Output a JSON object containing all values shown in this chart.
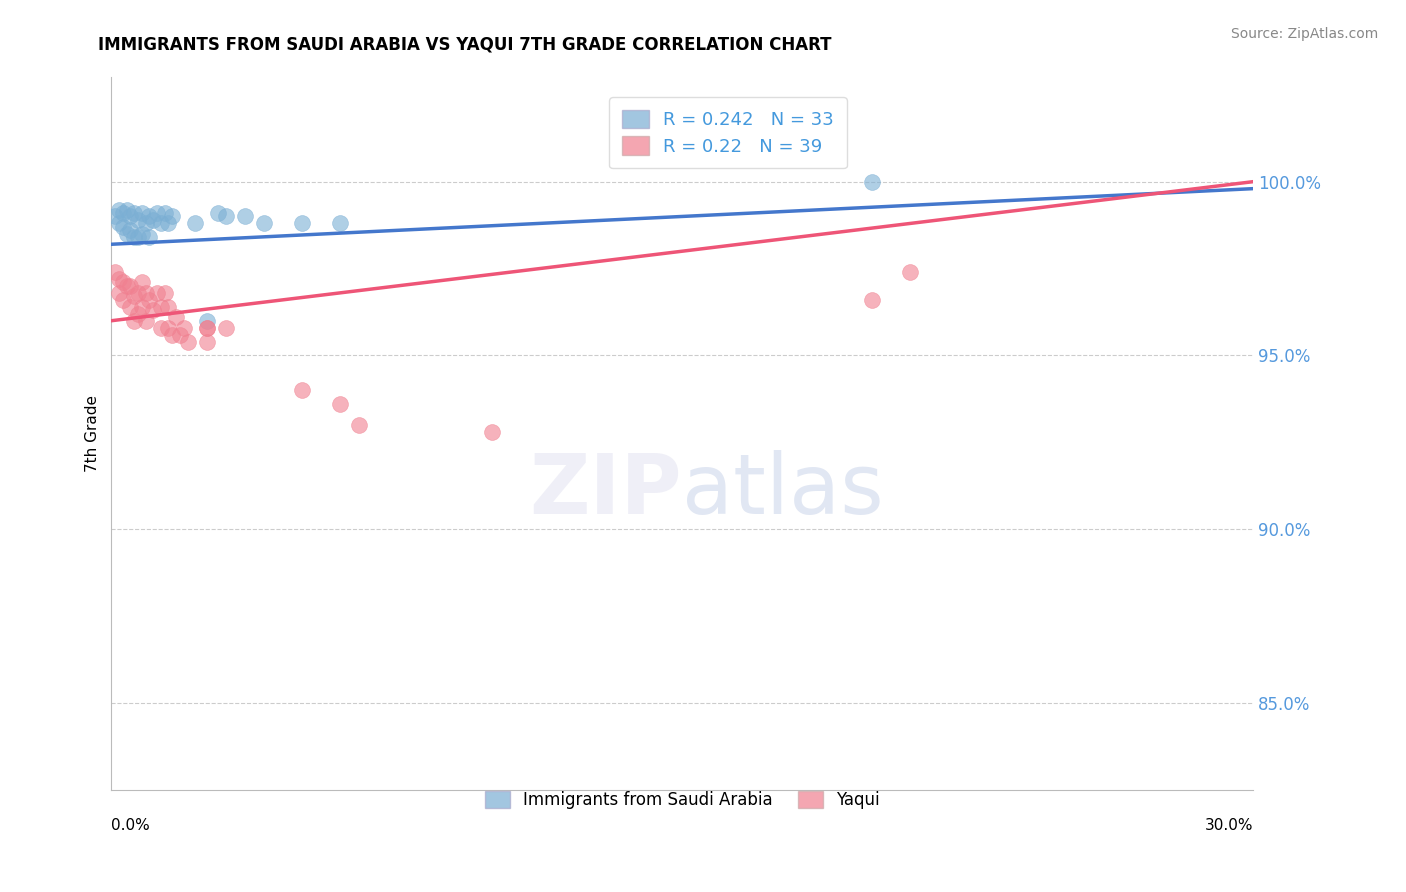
{
  "title": "IMMIGRANTS FROM SAUDI ARABIA VS YAQUI 7TH GRADE CORRELATION CHART",
  "source": "Source: ZipAtlas.com",
  "ylabel": "7th Grade",
  "x_label_bottom_left": "0.0%",
  "x_label_bottom_right": "30.0%",
  "y_ticks": [
    0.85,
    0.9,
    0.95,
    1.0
  ],
  "y_tick_labels": [
    "85.0%",
    "90.0%",
    "95.0%",
    "100.0%"
  ],
  "xlim": [
    0.0,
    0.3
  ],
  "ylim": [
    0.825,
    1.03
  ],
  "blue_R": 0.242,
  "blue_N": 33,
  "pink_R": 0.22,
  "pink_N": 39,
  "blue_color": "#7BAFD4",
  "pink_color": "#F08090",
  "blue_line_color": "#4477CC",
  "pink_line_color": "#EE5577",
  "legend_label_blue": "Immigrants from Saudi Arabia",
  "legend_label_pink": "Yaqui",
  "blue_scatter_x": [
    0.001,
    0.002,
    0.002,
    0.003,
    0.003,
    0.004,
    0.004,
    0.005,
    0.005,
    0.006,
    0.006,
    0.007,
    0.007,
    0.008,
    0.008,
    0.009,
    0.01,
    0.01,
    0.011,
    0.012,
    0.013,
    0.014,
    0.015,
    0.016,
    0.022,
    0.028,
    0.03,
    0.035,
    0.04,
    0.05,
    0.06,
    0.2,
    0.025
  ],
  "blue_scatter_y": [
    0.99,
    0.992,
    0.988,
    0.991,
    0.987,
    0.992,
    0.985,
    0.99,
    0.986,
    0.991,
    0.984,
    0.989,
    0.984,
    0.991,
    0.985,
    0.988,
    0.99,
    0.984,
    0.989,
    0.991,
    0.988,
    0.991,
    0.988,
    0.99,
    0.988,
    0.991,
    0.99,
    0.99,
    0.988,
    0.988,
    0.988,
    1.0,
    0.96
  ],
  "pink_scatter_x": [
    0.001,
    0.002,
    0.002,
    0.003,
    0.003,
    0.004,
    0.005,
    0.005,
    0.006,
    0.006,
    0.007,
    0.007,
    0.008,
    0.008,
    0.009,
    0.009,
    0.01,
    0.011,
    0.012,
    0.013,
    0.013,
    0.014,
    0.015,
    0.015,
    0.016,
    0.017,
    0.018,
    0.019,
    0.02,
    0.025,
    0.025,
    0.05,
    0.06,
    0.065,
    0.1,
    0.2,
    0.21,
    0.025,
    0.03
  ],
  "pink_scatter_y": [
    0.974,
    0.972,
    0.968,
    0.971,
    0.966,
    0.97,
    0.97,
    0.964,
    0.967,
    0.96,
    0.968,
    0.962,
    0.971,
    0.964,
    0.968,
    0.96,
    0.966,
    0.963,
    0.968,
    0.964,
    0.958,
    0.968,
    0.958,
    0.964,
    0.956,
    0.961,
    0.956,
    0.958,
    0.954,
    0.958,
    0.954,
    0.94,
    0.936,
    0.93,
    0.928,
    0.966,
    0.974,
    0.958,
    0.958
  ],
  "blue_trendline_x": [
    0.0,
    0.3
  ],
  "blue_trendline_y": [
    0.982,
    0.998
  ],
  "pink_trendline_x": [
    0.0,
    0.3
  ],
  "pink_trendline_y": [
    0.96,
    1.0
  ]
}
